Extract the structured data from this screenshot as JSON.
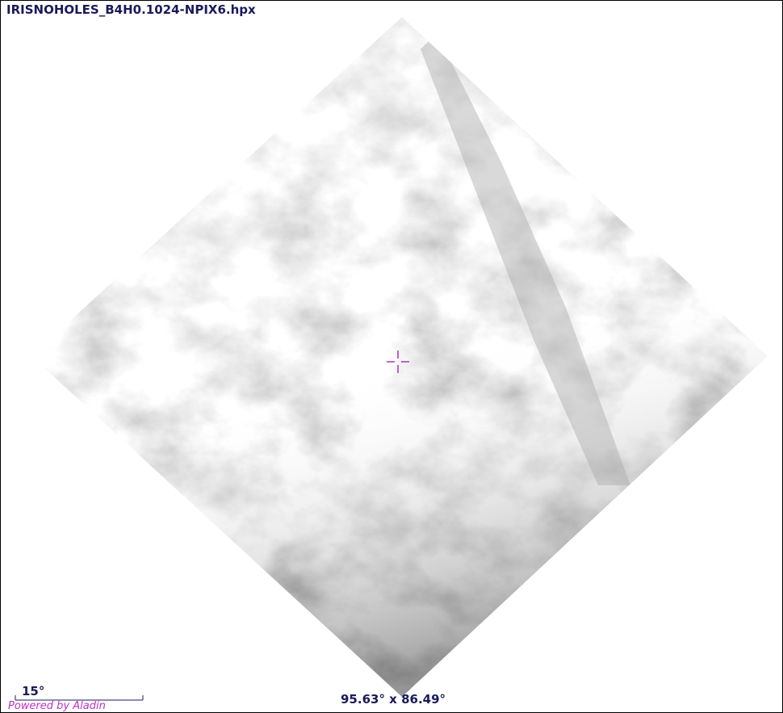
{
  "header": {
    "title": "IRISNOHOLES_B4H0.1024-NPIX6.hpx"
  },
  "scale": {
    "label": "15°"
  },
  "footer": {
    "credit": "Powered by Aladin",
    "field_size": "95.63° x 86.49°"
  }
}
